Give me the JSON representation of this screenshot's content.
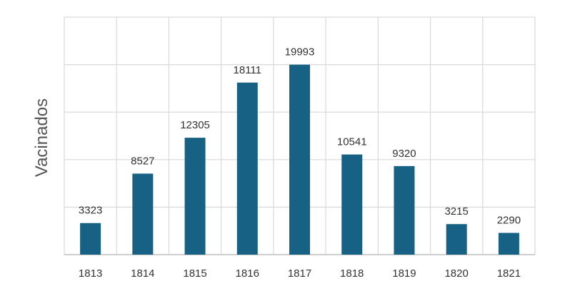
{
  "chart_data": {
    "type": "bar",
    "categories": [
      "1813",
      "1814",
      "1815",
      "1816",
      "1817",
      "1818",
      "1819",
      "1820",
      "1821"
    ],
    "values": [
      3323,
      8527,
      12305,
      18111,
      19993,
      10541,
      9320,
      3215,
      2290
    ],
    "ylabel": "Vacinados",
    "xlabel": "",
    "ylim": [
      0,
      25000
    ],
    "y_gridlines": [
      5000,
      10000,
      15000,
      20000,
      25000
    ],
    "grid": true,
    "data_labels": true,
    "legend": "none",
    "colors": {
      "bar": "#176185",
      "grid": "#d9d9d9",
      "axis": "#bfbfbf",
      "text": "#333333",
      "ylabel": "#555555"
    }
  }
}
